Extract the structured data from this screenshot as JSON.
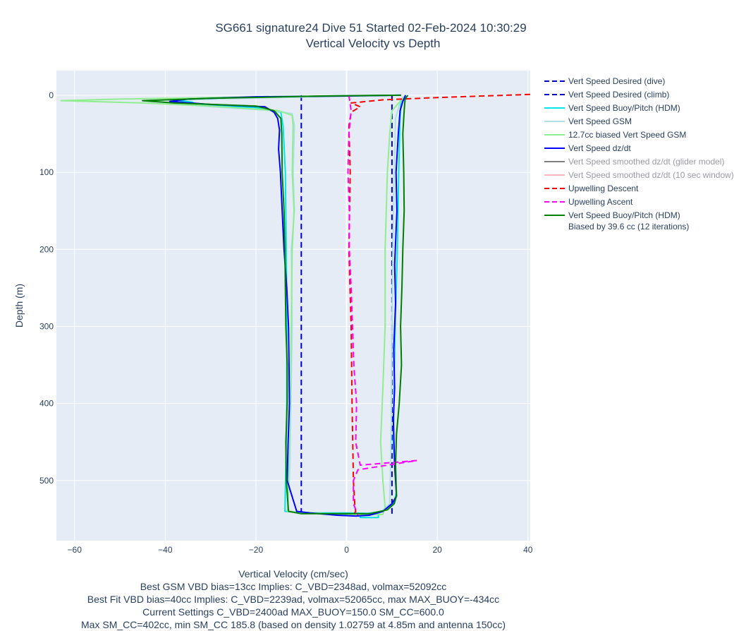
{
  "chart_data": {
    "type": "line",
    "title": "SG661 signature24 Dive 51 Started 02-Feb-2024 10:30:29",
    "subtitle": "Vertical Velocity vs Depth",
    "xlabel": "Vertical Velocity (cm/sec)",
    "ylabel": "Depth (m)",
    "xlim": [
      -64,
      40.5
    ],
    "ylim": [
      578,
      -32
    ],
    "y_reversed": true,
    "grid": true,
    "legend_position": "right",
    "x_ticks": [
      -60,
      -40,
      -20,
      0,
      20,
      40
    ],
    "x_tick_labels": [
      "−60",
      "−40",
      "−20",
      "0",
      "20",
      "40"
    ],
    "y_ticks": [
      0,
      100,
      200,
      300,
      400,
      500
    ],
    "y_tick_labels": [
      "0",
      "100",
      "200",
      "300",
      "400",
      "500"
    ],
    "series": [
      {
        "name": "Vert Speed Desired (dive)",
        "color": "#0000cc",
        "dash": "dash",
        "dim": false,
        "points": [
          [
            -10,
            0
          ],
          [
            -10,
            545
          ]
        ]
      },
      {
        "name": "Vert Speed Desired (climb)",
        "color": "#0000cc",
        "dash": "dash",
        "dim": false,
        "points": [
          [
            10,
            0
          ],
          [
            10,
            545
          ]
        ]
      },
      {
        "name": "Vert Speed Buoy/Pitch (HDM)",
        "color": "#00e6e6",
        "dash": "solid",
        "dim": false,
        "points": [
          [
            12,
            0
          ],
          [
            -2,
            1
          ],
          [
            -20,
            3
          ],
          [
            -38,
            6
          ],
          [
            -34,
            9
          ],
          [
            -33,
            13
          ],
          [
            -20,
            16
          ],
          [
            -14.5,
            22
          ],
          [
            -14,
            40
          ],
          [
            -13.5,
            100
          ],
          [
            -13.3,
            200
          ],
          [
            -13.2,
            300
          ],
          [
            -13.2,
            400
          ],
          [
            -13.4,
            480
          ],
          [
            -13.6,
            540
          ],
          [
            -8,
            542
          ],
          [
            0,
            542
          ],
          [
            7,
            543
          ],
          [
            7,
            548
          ],
          [
            3,
            548
          ],
          [
            3,
            544
          ],
          [
            8,
            540
          ],
          [
            10.5,
            528
          ],
          [
            11,
            515
          ],
          [
            10.3,
            450
          ],
          [
            10.7,
            300
          ],
          [
            11.2,
            200
          ],
          [
            11.5,
            100
          ],
          [
            11.8,
            30
          ],
          [
            12,
            8
          ],
          [
            13,
            0
          ]
        ]
      },
      {
        "name": "Vert Speed GSM",
        "color": "#b0e0e6",
        "dash": "solid",
        "dim": false,
        "points": [
          [
            10,
            0
          ],
          [
            -15,
            3
          ],
          [
            -45,
            7
          ],
          [
            -32,
            14
          ],
          [
            -16,
            20
          ],
          [
            -12,
            24
          ],
          [
            -11.5,
            40
          ],
          [
            -11.8,
            100
          ],
          [
            -11.5,
            150
          ],
          [
            -12.2,
            200
          ],
          [
            -12,
            300
          ],
          [
            -12.3,
            400
          ],
          [
            -12.5,
            480
          ],
          [
            -13,
            540
          ],
          [
            -2,
            544
          ],
          [
            7,
            544
          ],
          [
            9.5,
            530
          ],
          [
            9.8,
            450
          ],
          [
            10,
            300
          ],
          [
            10.2,
            200
          ],
          [
            10.5,
            100
          ],
          [
            10.8,
            30
          ],
          [
            12,
            5
          ],
          [
            13,
            0
          ]
        ]
      },
      {
        "name": "12.7cc biased Vert Speed GSM",
        "color": "#90ee90",
        "dash": "solid",
        "dim": false,
        "points": [
          [
            8,
            0
          ],
          [
            -20,
            2
          ],
          [
            -50,
            5
          ],
          [
            -63,
            7
          ],
          [
            -45,
            10
          ],
          [
            -30,
            14
          ],
          [
            -15,
            20
          ],
          [
            -12,
            26
          ],
          [
            -11.8,
            40
          ],
          [
            -12,
            100
          ],
          [
            -11.6,
            150
          ],
          [
            -12,
            200
          ],
          [
            -12.2,
            300
          ],
          [
            -12.4,
            400
          ],
          [
            -12.8,
            480
          ],
          [
            -13,
            540
          ],
          [
            -2,
            544
          ],
          [
            8,
            544
          ],
          [
            8.5,
            535
          ],
          [
            8,
            500
          ],
          [
            7.5,
            450
          ],
          [
            8,
            380
          ],
          [
            8.5,
            300
          ],
          [
            8.5,
            200
          ],
          [
            9,
            100
          ],
          [
            9.5,
            50
          ],
          [
            10,
            20
          ],
          [
            13,
            0
          ]
        ]
      },
      {
        "name": "Vert Speed dz/dt",
        "color": "#0000ff",
        "dash": "solid",
        "dim": false,
        "points": [
          [
            12,
            0
          ],
          [
            0,
            1
          ],
          [
            -20,
            2
          ],
          [
            -35,
            5
          ],
          [
            -39,
            8
          ],
          [
            -30,
            12
          ],
          [
            -18,
            15
          ],
          [
            -16,
            22
          ],
          [
            -15.2,
            30
          ],
          [
            -14.8,
            45
          ],
          [
            -15,
            70
          ],
          [
            -14.6,
            100
          ],
          [
            -14.2,
            150
          ],
          [
            -13.8,
            200
          ],
          [
            -13.2,
            250
          ],
          [
            -12.8,
            300
          ],
          [
            -12.7,
            350
          ],
          [
            -12.6,
            400
          ],
          [
            -12.9,
            450
          ],
          [
            -13.1,
            500
          ],
          [
            -11,
            540
          ],
          [
            -8,
            542
          ],
          [
            -2,
            545
          ],
          [
            2,
            546
          ],
          [
            5,
            545
          ],
          [
            8,
            540
          ],
          [
            10,
            530
          ],
          [
            11,
            520
          ],
          [
            10.6,
            480
          ],
          [
            10.3,
            420
          ],
          [
            10.6,
            380
          ],
          [
            10.4,
            330
          ],
          [
            10.8,
            270
          ],
          [
            10.6,
            220
          ],
          [
            11.1,
            150
          ],
          [
            10.9,
            100
          ],
          [
            11.4,
            50
          ],
          [
            11.8,
            20
          ],
          [
            12.4,
            8
          ],
          [
            13,
            0
          ]
        ]
      },
      {
        "name": "Vert Speed smoothed dz/dt (glider model)",
        "color": "#808080",
        "dash": "solid",
        "dim": true,
        "points": []
      },
      {
        "name": "Vert Speed smoothed dz/dt (10 sec window)",
        "color": "#ffb6c1",
        "dash": "solid",
        "dim": true,
        "points": []
      },
      {
        "name": "Upwelling Descent",
        "color": "#ff0000",
        "dash": "dash",
        "dim": false,
        "points": [
          [
            40.5,
            -1
          ],
          [
            30,
            1
          ],
          [
            20,
            3
          ],
          [
            8,
            6
          ],
          [
            1,
            10
          ],
          [
            3,
            15
          ],
          [
            1,
            22
          ],
          [
            0.5,
            40
          ],
          [
            0.8,
            100
          ],
          [
            0.5,
            200
          ],
          [
            1,
            300
          ],
          [
            1.2,
            400
          ],
          [
            1.5,
            500
          ],
          [
            1.8,
            530
          ],
          [
            2,
            540
          ],
          [
            1.5,
            545
          ]
        ]
      },
      {
        "name": "Upwelling Ascent",
        "color": "#ff00ff",
        "dash": "dash",
        "dim": false,
        "points": [
          [
            0.5,
            0
          ],
          [
            1,
            20
          ],
          [
            0.5,
            50
          ],
          [
            0.3,
            100
          ],
          [
            0.6,
            150
          ],
          [
            0.6,
            200
          ],
          [
            1,
            250
          ],
          [
            1.3,
            300
          ],
          [
            1.6,
            350
          ],
          [
            2.2,
            400
          ],
          [
            2,
            450
          ],
          [
            3,
            480
          ],
          [
            15.5,
            474
          ],
          [
            2.5,
            486
          ],
          [
            1.5,
            500
          ],
          [
            1.5,
            530
          ],
          [
            2.5,
            545
          ]
        ]
      },
      {
        "name": "Vert Speed Buoy/Pitch (HDM)",
        "name_line2": "Biased by 39.6 cc (12 iterations)",
        "color": "#008000",
        "dash": "solid",
        "dim": false,
        "points": [
          [
            12,
            0
          ],
          [
            -5,
            1
          ],
          [
            -30,
            4
          ],
          [
            -45,
            7
          ],
          [
            -38,
            10
          ],
          [
            -20,
            14
          ],
          [
            -16,
            20
          ],
          [
            -14.5,
            30
          ],
          [
            -14.3,
            50
          ],
          [
            -14.2,
            100
          ],
          [
            -13.8,
            150
          ],
          [
            -13.6,
            200
          ],
          [
            -13.5,
            250
          ],
          [
            -13.4,
            300
          ],
          [
            -13.1,
            350
          ],
          [
            -13.1,
            400
          ],
          [
            -13.4,
            450
          ],
          [
            -13.3,
            500
          ],
          [
            -12.8,
            540
          ],
          [
            -10,
            543
          ],
          [
            0,
            543
          ],
          [
            5,
            543
          ],
          [
            9,
            538
          ],
          [
            10.5,
            530
          ],
          [
            11,
            520
          ],
          [
            10.8,
            480
          ],
          [
            11,
            440
          ],
          [
            11.6,
            400
          ],
          [
            12.1,
            350
          ],
          [
            11.9,
            300
          ],
          [
            12.2,
            250
          ],
          [
            12.4,
            200
          ],
          [
            12.7,
            150
          ],
          [
            12.6,
            100
          ],
          [
            12.4,
            50
          ],
          [
            12.7,
            20
          ],
          [
            12.9,
            5
          ],
          [
            13.5,
            0
          ]
        ]
      }
    ],
    "annotations": [
      "Best GSM VBD bias=13cc Implies: C_VBD=2348ad, volmax=52092cc",
      "Best Fit VBD bias=40cc Implies: C_VBD=2239ad, volmax=52065cc, max MAX_BUOY=-434cc",
      "Current Settings C_VBD=2400ad MAX_BUOY=150.0 SM_CC=600.0",
      "Max SM_CC=402cc, min SM_CC 185.8 (based on density 1.02759 at 4.85m and antenna 150cc)"
    ]
  }
}
